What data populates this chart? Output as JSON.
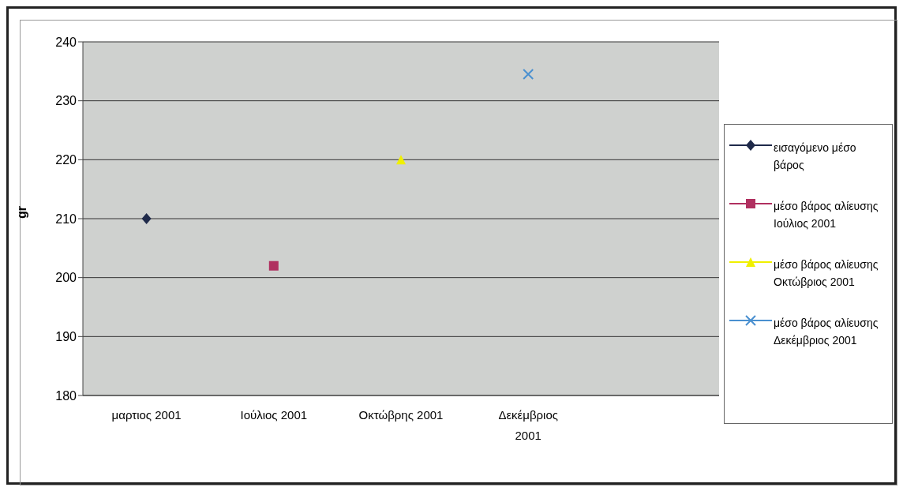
{
  "chart_data": {
    "type": "line",
    "ylabel": "gr",
    "categories": [
      "μαρτιος 2001",
      "Ιούλιος 2001",
      "Οκτώβρης 2001",
      "Δεκέμβριος 2001",
      null
    ],
    "ylim": [
      180,
      240
    ],
    "yticks": [
      180,
      190,
      200,
      210,
      220,
      230,
      240
    ],
    "grid": "y",
    "legend": "right",
    "series": [
      {
        "name": "εισαγόμενο μέσο βάρος",
        "color": "#1f2a4a",
        "marker": "diamond",
        "values": [
          210,
          null,
          null,
          null,
          null
        ]
      },
      {
        "name": "μέσο βάρος αλίευσης Ιούλιος 2001",
        "color": "#b03060",
        "marker": "square",
        "values": [
          null,
          202,
          null,
          null,
          null
        ]
      },
      {
        "name": "μέσο βάρος αλίευσης Οκτώβριος 2001",
        "color": "#f0f000",
        "marker": "triangle",
        "values": [
          null,
          null,
          220,
          null,
          null
        ]
      },
      {
        "name": "μέσο βάρος αλίευσης Δεκέμβριος 2001",
        "color": "#4a90d0",
        "marker": "cross",
        "values": [
          null,
          null,
          null,
          234.5,
          null
        ]
      }
    ]
  }
}
